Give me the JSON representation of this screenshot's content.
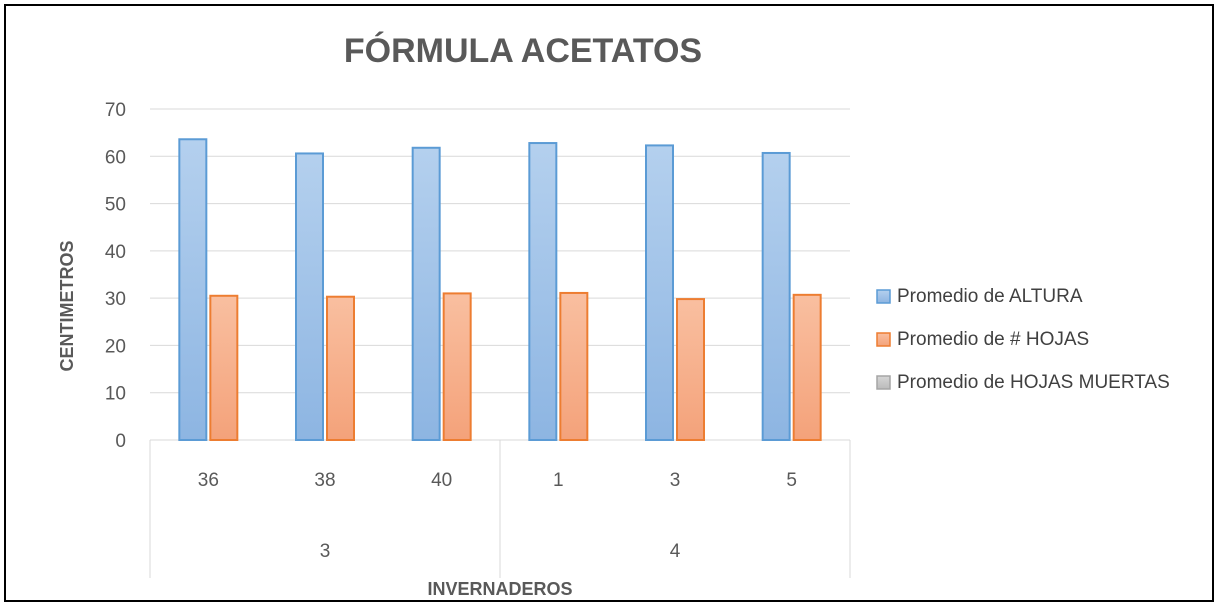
{
  "chart_data": {
    "type": "bar",
    "title": "FÓRMULA ACETATOS",
    "xlabel": "INVERNADEROS",
    "ylabel": "CENTIMETROS",
    "ylim": [
      0,
      70
    ],
    "yticks": [
      0,
      10,
      20,
      30,
      40,
      50,
      60,
      70
    ],
    "grid": true,
    "legend_position": "right",
    "categories": [
      "36",
      "38",
      "40",
      "1",
      "3",
      "5"
    ],
    "groups": [
      {
        "label": "3",
        "categories": [
          "36",
          "38",
          "40"
        ]
      },
      {
        "label": "4",
        "categories": [
          "1",
          "3",
          "5"
        ]
      }
    ],
    "series": [
      {
        "name": "Promedio de ALTURA",
        "color": "#9DC3E6",
        "border": "#5B9BD5",
        "values": [
          63.6,
          60.6,
          61.8,
          62.8,
          62.3,
          60.7
        ]
      },
      {
        "name": "Promedio de # HOJAS",
        "color": "#F8B48A",
        "border": "#ED7D31",
        "values": [
          30.5,
          30.3,
          31.0,
          31.1,
          29.8,
          30.7
        ]
      },
      {
        "name": "Promedio de HOJAS MUERTAS",
        "color": "#C9C9C9",
        "border": "#A5A5A5",
        "values": [
          0,
          0,
          0,
          0,
          0,
          0
        ]
      }
    ]
  }
}
